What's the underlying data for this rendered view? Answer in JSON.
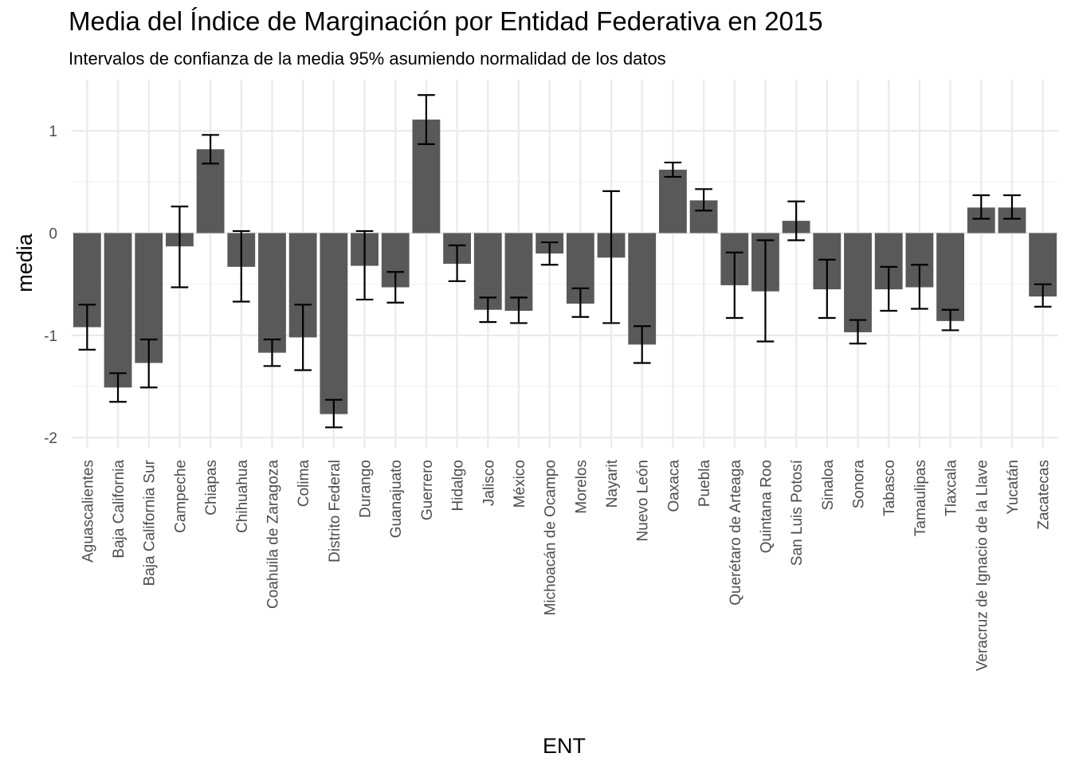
{
  "chart_data": {
    "type": "bar",
    "title": "Media del Índice de Marginación por Entidad Federativa en 2015",
    "subtitle": "Intervalos de confianza de la media 95% asumiendo normalidad de los datos",
    "xlabel": "ENT",
    "ylabel": "media",
    "ylim": [
      -2.1,
      1.5
    ],
    "yticks": [
      -2,
      -1,
      0,
      1
    ],
    "ytick_labels": [
      "-2",
      "-1",
      "0",
      "1"
    ],
    "grid": true,
    "bar_color": "#595959",
    "errorbar_color": "#000000",
    "categories": [
      "Aguascalientes",
      "Baja California",
      "Baja California Sur",
      "Campeche",
      "Chiapas",
      "Chihuahua",
      "Coahuila de Zaragoza",
      "Colima",
      "Distrito Federal",
      "Durango",
      "Guanajuato",
      "Guerrero",
      "Hidalgo",
      "Jalisco",
      "México",
      "Michoacán de Ocampo",
      "Morelos",
      "Nayarit",
      "Nuevo León",
      "Oaxaca",
      "Puebla",
      "Querétaro de Arteaga",
      "Quintana Roo",
      "San Luis Potosí",
      "Sinaloa",
      "Sonora",
      "Tabasco",
      "Tamaulipas",
      "Tlaxcala",
      "Veracruz de Ignacio de la Llave",
      "Yucatán",
      "Zacatecas"
    ],
    "values": [
      -0.92,
      -1.51,
      -1.27,
      -0.13,
      0.82,
      -0.33,
      -1.17,
      -1.02,
      -1.77,
      -0.32,
      -0.53,
      1.11,
      -0.3,
      -0.75,
      -0.76,
      -0.2,
      -0.69,
      -0.24,
      -1.09,
      0.62,
      0.32,
      -0.51,
      -0.57,
      0.12,
      -0.55,
      -0.97,
      -0.55,
      -0.53,
      -0.86,
      0.25,
      0.25,
      -0.62
    ],
    "lower": [
      -1.14,
      -1.65,
      -1.51,
      -0.53,
      0.68,
      -0.67,
      -1.3,
      -1.34,
      -1.9,
      -0.65,
      -0.68,
      0.87,
      -0.47,
      -0.87,
      -0.88,
      -0.31,
      -0.82,
      -0.88,
      -1.27,
      0.55,
      0.22,
      -0.83,
      -1.06,
      -0.07,
      -0.83,
      -1.08,
      -0.76,
      -0.74,
      -0.95,
      0.14,
      0.14,
      -0.72
    ],
    "upper": [
      -0.7,
      -1.37,
      -1.04,
      0.26,
      0.96,
      0.02,
      -1.04,
      -0.7,
      -1.63,
      0.02,
      -0.38,
      1.35,
      -0.12,
      -0.63,
      -0.63,
      -0.09,
      -0.54,
      0.41,
      -0.91,
      0.69,
      0.43,
      -0.19,
      -0.07,
      0.31,
      -0.26,
      -0.85,
      -0.33,
      -0.31,
      -0.75,
      0.37,
      0.37,
      -0.5
    ]
  }
}
